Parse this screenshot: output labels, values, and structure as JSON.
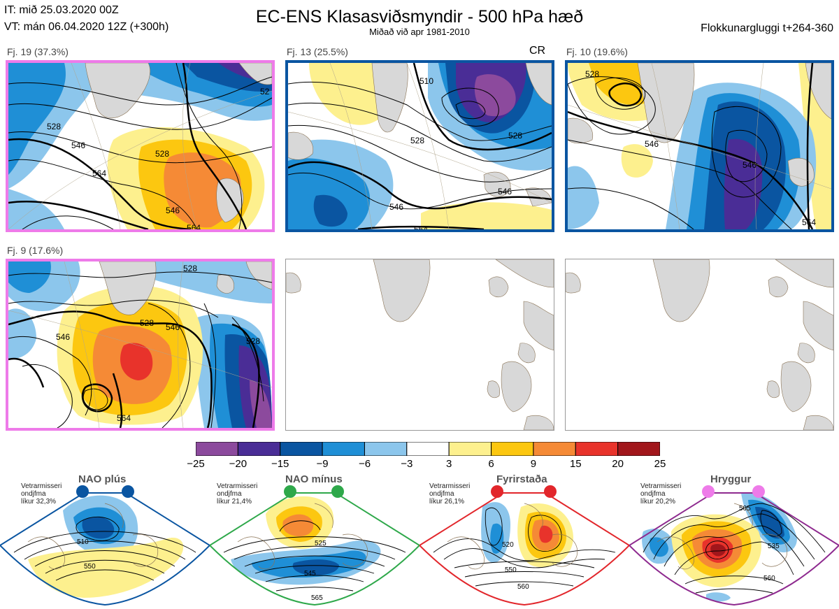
{
  "header": {
    "it_line": "IT: mið 25.03.2020 00Z",
    "vt_line": "VT: mán 06.04.2020 12Z  (+300h)",
    "title": "EC-ENS Klasasviðsmyndir - 500 hPa hæð",
    "subtitle": "Miðað við apr 1981-2010",
    "window": "Flokkunargluggi t+264-360"
  },
  "panels": [
    {
      "label": "Fj. 19 (37.3%)",
      "border_color": "#ee7be9",
      "contours": [
        "546",
        "564",
        "528",
        "546",
        "564",
        "528",
        "52"
      ],
      "marker": ""
    },
    {
      "label": "Fj. 13 (25.5%)",
      "border_color": "#0a55a1",
      "contours": [
        "510",
        "528",
        "528",
        "546",
        "564",
        "546"
      ],
      "marker": "CR"
    },
    {
      "label": "Fj. 10 (19.6%)",
      "border_color": "#0a55a1",
      "contours": [
        "528",
        "546",
        "546",
        "564"
      ],
      "marker": ""
    },
    {
      "label": "Fj. 9 (17.6%)",
      "border_color": "#ee7be9",
      "contours": [
        "528",
        "546",
        "528",
        "546",
        "564",
        "528"
      ],
      "marker": ""
    }
  ],
  "colorbar": {
    "ticks": [
      "−25",
      "−20",
      "−15",
      "−9",
      "−6",
      "−3",
      "3",
      "6",
      "9",
      "15",
      "20",
      "25"
    ],
    "colors": [
      "#8c4a9d",
      "#4a2d96",
      "#0a55a1",
      "#1f8fd6",
      "#8cc6ec",
      "#ffffff",
      "#fdf08e",
      "#fcc710",
      "#f58a36",
      "#e8332b",
      "#a1161b"
    ]
  },
  "regimes": [
    {
      "name": "NAO plús",
      "stats": [
        "Vetrarmisseri",
        "ondjfma",
        "líkur 32,3%"
      ],
      "color": "#0a55a1",
      "contours": [
        "510",
        "550"
      ]
    },
    {
      "name": "NAO mínus",
      "stats": [
        "Vetrarmisseri",
        "ondjfma",
        "líkur 21,4%"
      ],
      "color": "#2ea84a",
      "contours": [
        "525",
        "545",
        "565"
      ]
    },
    {
      "name": "Fyrirstaða",
      "stats": [
        "Vetrarmisseri",
        "ondjfma",
        "líkur 26,1%"
      ],
      "color": "#e2262b",
      "contours": [
        "520",
        "550",
        "560"
      ]
    },
    {
      "name": "Hryggur",
      "stats": [
        "Vetrarmisseri",
        "ondjfma",
        "líkur 20,2%"
      ],
      "color": "#8e2a8f",
      "contours": [
        "505",
        "535",
        "560"
      ]
    }
  ]
}
